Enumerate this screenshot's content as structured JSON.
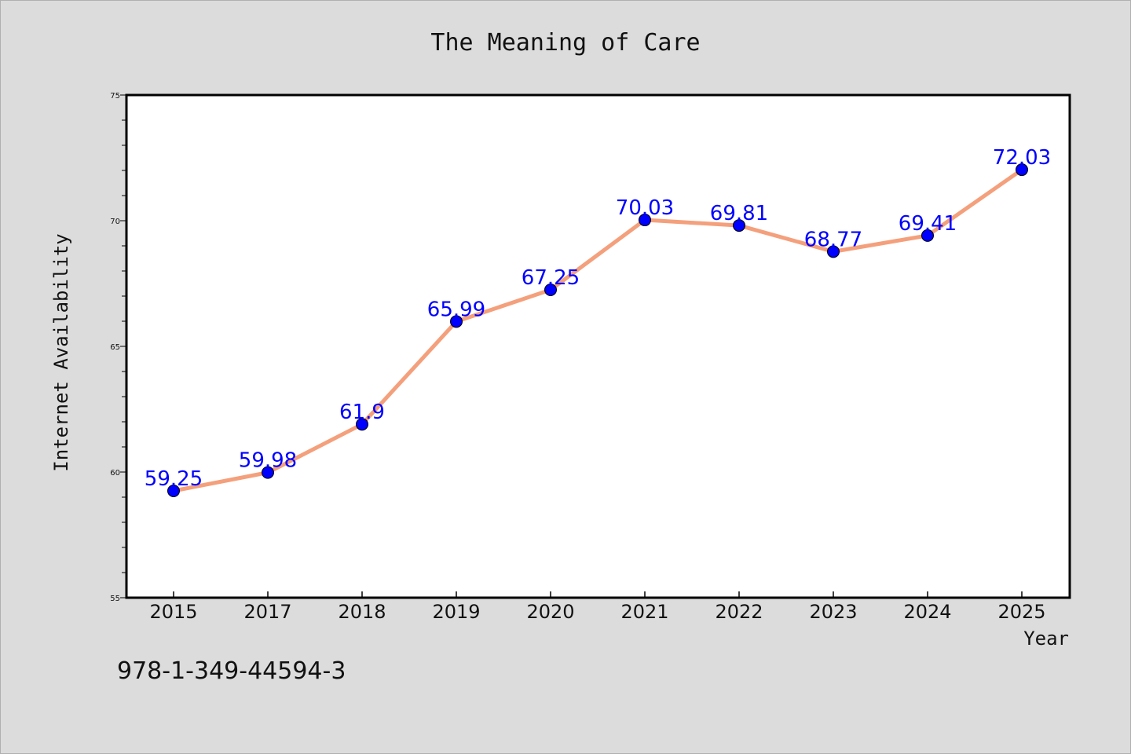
{
  "isbn": "978-1-349-44594-3",
  "colors": {
    "background": "#dcdcdc",
    "plot_background": "#ffffff",
    "line": "#f4a07c",
    "marker": "#0000ff",
    "data_label": "#0000ff"
  },
  "chart_data": {
    "type": "line",
    "title": "The Meaning of Care",
    "xlabel": "Year",
    "ylabel": "Internet Availability",
    "categories": [
      "2015",
      "2017",
      "2018",
      "2019",
      "2020",
      "2021",
      "2022",
      "2023",
      "2024",
      "2025"
    ],
    "series": [
      {
        "values": [
          59.25,
          59.98,
          61.9,
          65.99,
          67.25,
          70.03,
          69.81,
          68.77,
          69.41,
          72.03
        ],
        "labels": [
          "59.25",
          "59.98",
          "61.9",
          "65.99",
          "67.25",
          "70.03",
          "69.81",
          "68.77",
          "69.41",
          "72.03"
        ]
      }
    ],
    "ylim": [
      55,
      75
    ],
    "yticks": [
      55,
      60,
      65,
      70,
      75
    ],
    "grid": false,
    "markers": true
  }
}
